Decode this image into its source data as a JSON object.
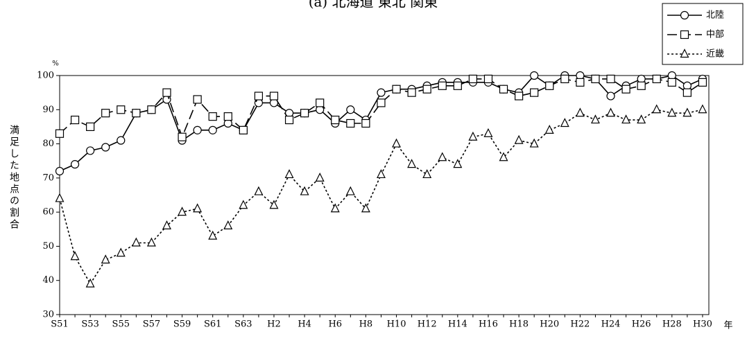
{
  "chart_data": {
    "type": "line",
    "title": "(a) 北海道 東北 関東",
    "y_unit": "%",
    "y_label": "満足した地点の割合",
    "x_unit": "年",
    "categories": [
      "S51",
      null,
      "S53",
      null,
      "S55",
      null,
      "S57",
      null,
      "S59",
      null,
      "S61",
      null,
      "S63",
      null,
      "H2",
      null,
      "H4",
      null,
      "H6",
      null,
      "H8",
      null,
      "H10",
      null,
      "H12",
      null,
      "H14",
      null,
      "H16",
      null,
      "H18",
      null,
      "H20",
      null,
      "H22",
      null,
      "H24",
      null,
      "H26",
      null,
      "H28",
      null,
      "H30"
    ],
    "series": [
      {
        "name": "北陸",
        "color": "#000000",
        "line": "solid",
        "marker": "circle",
        "values": [
          72,
          74,
          78,
          79,
          81,
          89,
          90,
          93,
          81,
          84,
          84,
          86,
          84,
          92,
          92,
          89,
          89,
          90,
          86,
          90,
          87,
          95,
          96,
          96,
          97,
          98,
          98,
          98,
          98,
          96,
          95,
          100,
          97,
          100,
          100,
          99,
          94,
          97,
          99,
          99,
          100,
          97,
          99
        ]
      },
      {
        "name": "中部",
        "color": "#000000",
        "line": "dashed",
        "marker": "square",
        "values": [
          83,
          87,
          85,
          89,
          90,
          89,
          90,
          95,
          82,
          93,
          88,
          88,
          84,
          94,
          94,
          87,
          89,
          92,
          87,
          86,
          86,
          92,
          96,
          95,
          96,
          97,
          97,
          99,
          99,
          96,
          94,
          95,
          97,
          99,
          98,
          99,
          99,
          96,
          97,
          99,
          98,
          95,
          98
        ]
      },
      {
        "name": "近畿",
        "color": "#000000",
        "line": "dotted",
        "marker": "triangle",
        "values": [
          64,
          47,
          39,
          46,
          48,
          51,
          51,
          56,
          60,
          61,
          53,
          56,
          62,
          66,
          62,
          71,
          66,
          70,
          61,
          66,
          61,
          71,
          80,
          74,
          71,
          76,
          74,
          82,
          83,
          76,
          81,
          80,
          84,
          86,
          89,
          87,
          89,
          87,
          87,
          90,
          89,
          89,
          90
        ]
      }
    ],
    "ylim": [
      30,
      100
    ],
    "yticks": [
      30,
      40,
      50,
      60,
      70,
      80,
      90,
      100
    ],
    "grid": false,
    "legend": "top-right"
  }
}
